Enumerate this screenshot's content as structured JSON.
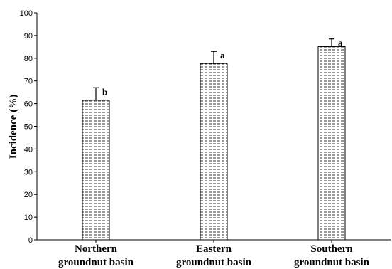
{
  "chart_data": {
    "type": "bar",
    "ylabel": "Incidence (%)",
    "xlabel": "",
    "ylim": [
      0,
      100
    ],
    "yticks": [
      0,
      10,
      20,
      30,
      40,
      50,
      60,
      70,
      80,
      90,
      100
    ],
    "grid": false,
    "categories": [
      {
        "line1": "Northern",
        "line2": "groundnut basin"
      },
      {
        "line1": "Eastern",
        "line2": "groundnut basin"
      },
      {
        "line1": "Southern",
        "line2": "groundnut basin"
      }
    ],
    "values": [
      61.5,
      77.7,
      85.1
    ],
    "error_upper": [
      67,
      83,
      88.5
    ],
    "significance_letters": [
      "b",
      "a",
      "a"
    ],
    "bar_pattern": "horizontal-dashes",
    "colors": {
      "bar_fill": "#ffffff",
      "pattern": "#000000",
      "axis": "#000000"
    }
  }
}
